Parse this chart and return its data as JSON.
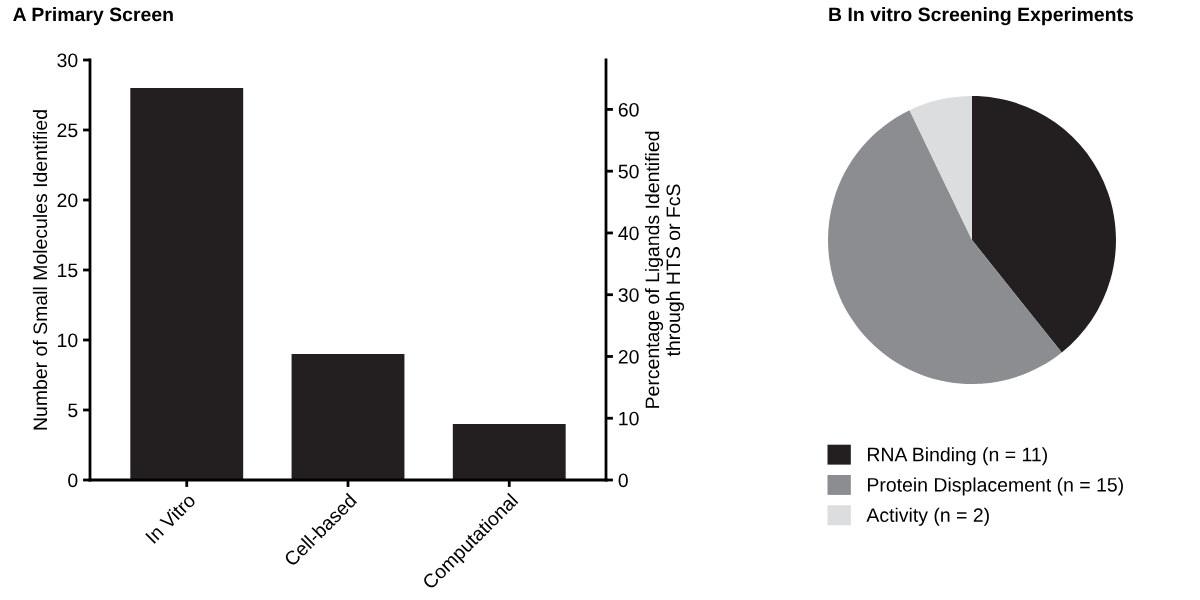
{
  "chart_data": [
    {
      "type": "bar",
      "title": "A Primary Screen",
      "categories": [
        "In Vitro",
        "Cell-based",
        "Computational"
      ],
      "values": [
        28,
        9,
        4
      ],
      "color": "#231f20",
      "ylabel": "Number of Small Molecules Identified",
      "y2label": "Percentage of Ligands Identified\nthrough HTS or FcS",
      "ylim": [
        0,
        30
      ],
      "yticks": [
        0,
        5,
        10,
        15,
        20,
        25,
        30
      ],
      "y2lim": [
        0,
        68
      ],
      "y2ticks": [
        0,
        10,
        20,
        30,
        40,
        50,
        60
      ],
      "grid": false
    },
    {
      "type": "pie",
      "title": "B In vitro Screening Experiments",
      "categories": [
        "RNA Binding (n = 11)",
        "Protein Displacement (n = 15)",
        "Activity (n = 2)"
      ],
      "values": [
        11,
        15,
        2
      ],
      "colors": [
        "#231f20",
        "#8c8d91",
        "#dcdddf"
      ],
      "legend": "bottom"
    }
  ]
}
